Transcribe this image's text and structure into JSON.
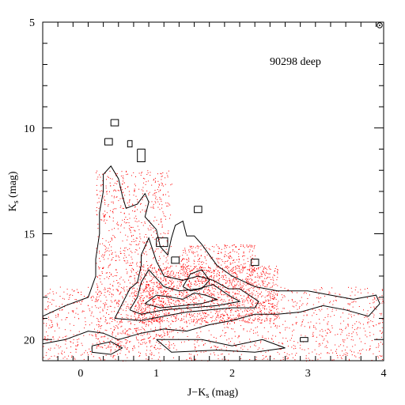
{
  "chart_data": {
    "type": "scatter",
    "annotation": "90298 deep",
    "xlabel": {
      "main": "J−K",
      "sub": "s",
      "unit": " (mag)"
    },
    "ylabel": {
      "main": "K",
      "sub": "s",
      "unit": " (mag)"
    },
    "xlim": [
      -0.5,
      4.0
    ],
    "ylim": [
      21.0,
      5.0
    ],
    "x_ticks_major": [
      0,
      1,
      2,
      3,
      4
    ],
    "x_tick_labels": [
      "0",
      "1",
      "2",
      "3",
      "4"
    ],
    "y_ticks_major": [
      5,
      10,
      15,
      20
    ],
    "y_tick_labels": [
      "5",
      "10",
      "15",
      "20"
    ],
    "x_minor_step": 0.2,
    "y_minor_step": 1,
    "point_color": "#ff0000",
    "contour_color": "#000000",
    "point_density_regions": [
      {
        "x_range": [
          -0.5,
          4.0
        ],
        "y_range": [
          17.5,
          21.0
        ],
        "weight": 0.35
      },
      {
        "x_range": [
          0.2,
          1.2
        ],
        "y_range": [
          12.0,
          20.5
        ],
        "weight": 0.25
      },
      {
        "x_range": [
          0.7,
          2.6
        ],
        "y_range": [
          16.5,
          19.2
        ],
        "weight": 0.3
      },
      {
        "x_range": [
          1.3,
          2.3
        ],
        "y_range": [
          15.5,
          17.5
        ],
        "weight": 0.1
      }
    ],
    "contours": [
      [
        [
          -0.5,
          18.9
        ],
        [
          -0.2,
          18.4
        ],
        [
          0.1,
          18.0
        ],
        [
          0.2,
          17.0
        ],
        [
          0.2,
          16.2
        ],
        [
          0.25,
          15.0
        ],
        [
          0.25,
          14.0
        ],
        [
          0.3,
          13.0
        ],
        [
          0.3,
          12.2
        ],
        [
          0.4,
          11.8
        ],
        [
          0.5,
          12.4
        ],
        [
          0.55,
          13.2
        ],
        [
          0.6,
          13.8
        ],
        [
          0.75,
          13.6
        ],
        [
          0.85,
          13.1
        ],
        [
          0.9,
          13.5
        ],
        [
          0.85,
          14.2
        ],
        [
          1.0,
          14.8
        ],
        [
          1.05,
          15.6
        ],
        [
          1.15,
          16.0
        ],
        [
          1.2,
          15.2
        ],
        [
          1.25,
          14.6
        ],
        [
          1.35,
          14.4
        ],
        [
          1.4,
          15.1
        ],
        [
          1.5,
          15.1
        ],
        [
          1.6,
          15.5
        ],
        [
          1.8,
          16.5
        ],
        [
          2.0,
          17.0
        ],
        [
          2.3,
          17.5
        ],
        [
          2.6,
          17.7
        ],
        [
          3.0,
          17.7
        ],
        [
          3.3,
          17.9
        ],
        [
          3.6,
          18.1
        ],
        [
          3.9,
          17.9
        ],
        [
          3.95,
          18.3
        ],
        [
          3.8,
          18.9
        ],
        [
          3.5,
          18.6
        ],
        [
          3.2,
          18.4
        ],
        [
          2.9,
          18.7
        ],
        [
          2.6,
          18.8
        ],
        [
          2.3,
          18.8
        ],
        [
          2.0,
          19.1
        ],
        [
          1.7,
          19.3
        ],
        [
          1.4,
          19.6
        ],
        [
          1.1,
          19.5
        ],
        [
          0.8,
          19.7
        ],
        [
          0.5,
          20.0
        ],
        [
          0.3,
          19.7
        ],
        [
          0.1,
          19.6
        ],
        [
          -0.2,
          20.0
        ],
        [
          -0.5,
          20.2
        ]
      ],
      [
        [
          0.45,
          19.0
        ],
        [
          0.55,
          18.3
        ],
        [
          0.65,
          17.6
        ],
        [
          0.75,
          17.3
        ],
        [
          0.8,
          16.5
        ],
        [
          0.8,
          16.0
        ],
        [
          0.9,
          15.2
        ],
        [
          1.0,
          16.3
        ],
        [
          1.1,
          17.0
        ],
        [
          1.35,
          17.2
        ],
        [
          1.55,
          17.0
        ],
        [
          1.75,
          17.2
        ],
        [
          1.95,
          17.6
        ],
        [
          2.1,
          17.6
        ],
        [
          2.35,
          18.2
        ],
        [
          2.3,
          18.5
        ],
        [
          2.0,
          18.5
        ],
        [
          1.7,
          18.6
        ],
        [
          1.4,
          18.7
        ],
        [
          1.1,
          18.9
        ],
        [
          0.8,
          19.1
        ],
        [
          0.45,
          19.0
        ]
      ],
      [
        [
          0.65,
          18.6
        ],
        [
          0.75,
          18.0
        ],
        [
          0.8,
          17.3
        ],
        [
          0.9,
          16.7
        ],
        [
          1.1,
          17.5
        ],
        [
          1.3,
          17.7
        ],
        [
          1.55,
          17.6
        ],
        [
          1.75,
          17.4
        ],
        [
          1.95,
          17.9
        ],
        [
          2.1,
          18.2
        ],
        [
          1.8,
          18.4
        ],
        [
          1.45,
          18.5
        ],
        [
          1.1,
          18.6
        ],
        [
          0.8,
          18.8
        ],
        [
          0.65,
          18.6
        ]
      ],
      [
        [
          0.85,
          18.3
        ],
        [
          1.0,
          17.9
        ],
        [
          1.2,
          18.0
        ],
        [
          1.35,
          18.1
        ],
        [
          1.5,
          17.8
        ],
        [
          1.65,
          17.9
        ],
        [
          1.8,
          18.1
        ],
        [
          1.6,
          18.3
        ],
        [
          1.35,
          18.4
        ],
        [
          1.05,
          18.5
        ],
        [
          0.85,
          18.3
        ]
      ],
      [
        [
          1.35,
          17.5
        ],
        [
          1.45,
          16.9
        ],
        [
          1.6,
          16.7
        ],
        [
          1.7,
          17.2
        ],
        [
          1.6,
          17.6
        ],
        [
          1.45,
          17.7
        ],
        [
          1.35,
          17.5
        ]
      ],
      [
        [
          0.4,
          9.6
        ],
        [
          0.5,
          9.6
        ],
        [
          0.5,
          9.9
        ],
        [
          0.4,
          9.9
        ],
        [
          0.4,
          9.6
        ]
      ],
      [
        [
          0.32,
          10.5
        ],
        [
          0.42,
          10.5
        ],
        [
          0.42,
          10.8
        ],
        [
          0.32,
          10.8
        ],
        [
          0.32,
          10.5
        ]
      ],
      [
        [
          0.62,
          10.6
        ],
        [
          0.68,
          10.6
        ],
        [
          0.68,
          10.9
        ],
        [
          0.62,
          10.9
        ],
        [
          0.62,
          10.6
        ]
      ],
      [
        [
          0.75,
          11.0
        ],
        [
          0.85,
          11.0
        ],
        [
          0.85,
          11.6
        ],
        [
          0.75,
          11.6
        ],
        [
          0.75,
          11.0
        ]
      ],
      [
        [
          1.0,
          15.2
        ],
        [
          1.15,
          15.2
        ],
        [
          1.15,
          15.6
        ],
        [
          1.0,
          15.6
        ],
        [
          1.0,
          15.2
        ]
      ],
      [
        [
          1.2,
          16.1
        ],
        [
          1.3,
          16.1
        ],
        [
          1.3,
          16.4
        ],
        [
          1.2,
          16.4
        ],
        [
          1.2,
          16.1
        ]
      ],
      [
        [
          2.25,
          16.2
        ],
        [
          2.35,
          16.2
        ],
        [
          2.35,
          16.5
        ],
        [
          2.25,
          16.5
        ],
        [
          2.25,
          16.2
        ]
      ],
      [
        [
          1.5,
          13.7
        ],
        [
          1.6,
          13.7
        ],
        [
          1.6,
          14.0
        ],
        [
          1.5,
          14.0
        ],
        [
          1.5,
          13.7
        ]
      ],
      [
        [
          2.9,
          19.9
        ],
        [
          3.0,
          19.9
        ],
        [
          3.0,
          20.1
        ],
        [
          2.9,
          20.1
        ],
        [
          2.9,
          19.9
        ]
      ],
      [
        [
          1.0,
          20.0
        ],
        [
          1.6,
          20.0
        ],
        [
          2.0,
          20.3
        ],
        [
          2.4,
          20.0
        ],
        [
          2.7,
          20.4
        ],
        [
          2.3,
          20.6
        ],
        [
          1.8,
          20.5
        ],
        [
          1.2,
          20.6
        ],
        [
          1.0,
          20.0
        ]
      ],
      [
        [
          0.15,
          20.3
        ],
        [
          0.4,
          20.1
        ],
        [
          0.55,
          20.4
        ],
        [
          0.4,
          20.7
        ],
        [
          0.15,
          20.6
        ],
        [
          0.15,
          20.3
        ]
      ]
    ]
  }
}
